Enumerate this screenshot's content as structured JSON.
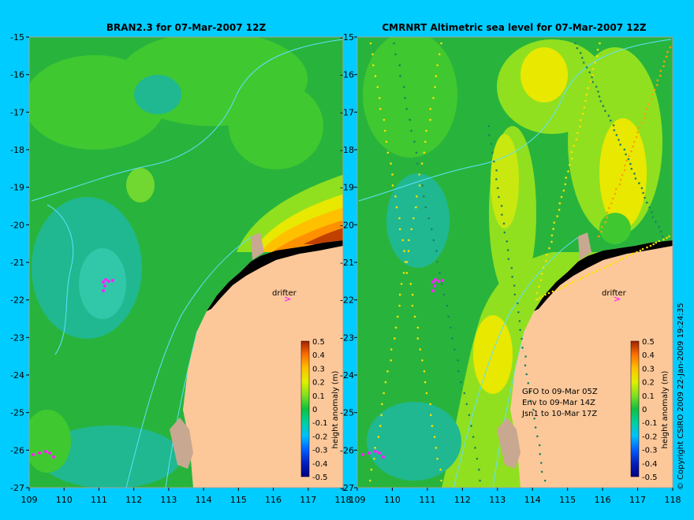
{
  "left_panel": {
    "title": "BRAN2.3 for 07-Mar-2007 12Z",
    "drifter_label": "drifter",
    "colorbar_label": "height anomaly (m)"
  },
  "right_panel": {
    "title": "CMRNRT Altimetric sea level  for 07-Mar-2007 12Z",
    "drifter_label": "drifter",
    "colorbar_label": "height anomaly (m)",
    "notes": [
      "GFO to 09-Mar 05Z",
      "Env to 09-Mar 14Z",
      "Jsn1 to 10-Mar 17Z"
    ]
  },
  "lat_ticks": [
    "-15",
    "-16",
    "-17",
    "-18",
    "-19",
    "-20",
    "-21",
    "-22",
    "-23",
    "-24",
    "-25",
    "-26",
    "-27"
  ],
  "lon_ticks": [
    "109",
    "110",
    "111",
    "112",
    "113",
    "114",
    "115",
    "116",
    "117",
    "118"
  ],
  "colorbar_ticks": [
    "0.5",
    "0.4",
    "0.3",
    "0.2",
    "0.1",
    "0",
    "-0.1",
    "-0.2",
    "-0.3",
    "-0.4",
    "-0.5"
  ],
  "copyright": "© Copyright CSIRO 2009   22-Jan-2009 19:24:35",
  "colors": {
    "background": "#00ccff",
    "land": "#fcc89a",
    "reef": "#c8a890"
  }
}
